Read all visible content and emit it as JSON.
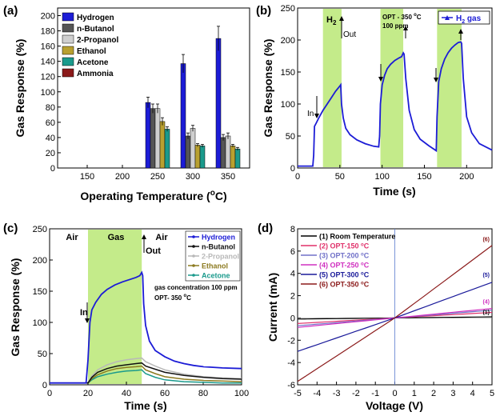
{
  "chart_data": [
    {
      "panel": "(a)",
      "type": "bar",
      "xlabel": "Operating Temperature (",
      "xlabel_sup": "o",
      "xlabel_end": "C)",
      "ylabel": "Gas Response (%)",
      "categories": [
        "150",
        "200",
        "250",
        "300",
        "350"
      ],
      "ylim": [
        0,
        210
      ],
      "yticks": [
        0,
        20,
        40,
        60,
        80,
        100,
        120,
        140,
        160,
        180,
        200
      ],
      "series": [
        {
          "name": "Hydrogen",
          "color": "#1c1cd6",
          "values": [
            0,
            0,
            86,
            137,
            170
          ],
          "errors": [
            0,
            0,
            7,
            12,
            16
          ]
        },
        {
          "name": "n-Butanol",
          "color": "#555555",
          "values": [
            0,
            0,
            78,
            42,
            40
          ],
          "errors": [
            0,
            0,
            6,
            4,
            4
          ]
        },
        {
          "name": "2-Propanol",
          "color": "#cfcfcf",
          "values": [
            0,
            0,
            78,
            52,
            42
          ],
          "errors": [
            0,
            0,
            6,
            4,
            4
          ]
        },
        {
          "name": "Ethanol",
          "color": "#b8a030",
          "values": [
            0,
            0,
            61,
            30,
            29
          ],
          "errors": [
            0,
            0,
            5,
            2,
            2
          ]
        },
        {
          "name": "Acetone",
          "color": "#1a9a8c",
          "values": [
            0,
            0,
            51,
            29,
            25
          ],
          "errors": [
            0,
            0,
            3,
            2,
            2
          ]
        },
        {
          "name": "Ammonia",
          "color": "#8b1a1a",
          "values": [
            0,
            0,
            0,
            0,
            0
          ],
          "errors": [
            0,
            0,
            0,
            0,
            0
          ]
        }
      ]
    },
    {
      "panel": "(b)",
      "type": "line",
      "xlabel": "Time (s)",
      "ylabel": "Gas Response (%)",
      "xlim": [
        0,
        230
      ],
      "ylim": [
        0,
        250
      ],
      "xticks": [
        0,
        50,
        100,
        150,
        200
      ],
      "yticks": [
        0,
        50,
        100,
        150,
        200,
        250
      ],
      "shaded": [
        [
          30,
          52
        ],
        [
          98,
          125
        ],
        [
          165,
          194
        ]
      ],
      "series": [
        {
          "name": "H2 gas",
          "color": "#1c1cd6",
          "x": [
            0,
            18,
            19,
            20,
            22,
            25,
            30,
            35,
            40,
            45,
            50,
            51,
            52,
            54,
            57,
            62,
            70,
            80,
            90,
            96,
            97,
            98,
            100,
            103,
            106,
            110,
            115,
            120,
            123,
            125,
            126,
            128,
            132,
            138,
            145,
            155,
            164,
            165,
            167,
            170,
            174,
            178,
            182,
            186,
            190,
            193,
            194,
            196,
            200,
            206,
            215,
            230
          ],
          "y": [
            3,
            3,
            20,
            65,
            70,
            78,
            90,
            100,
            110,
            120,
            128,
            130,
            100,
            78,
            62,
            52,
            44,
            38,
            34,
            33,
            50,
            100,
            130,
            145,
            155,
            162,
            168,
            172,
            174,
            180,
            178,
            140,
            90,
            60,
            45,
            35,
            27,
            80,
            135,
            155,
            170,
            180,
            187,
            192,
            196,
            197,
            195,
            140,
            80,
            55,
            38,
            28
          ]
        }
      ],
      "annotations": [
        "In",
        "Out",
        "OPT - 350 ",
        "100 ppm"
      ],
      "annotation_h2": "H",
      "annotation_h2_sub": "2",
      "annotation_opt_sup": "o",
      "annotation_opt_end": "C"
    },
    {
      "panel": "(c)",
      "type": "line",
      "xlabel": "Time (s)",
      "ylabel": "Gas Response (%)",
      "xlim": [
        0,
        100
      ],
      "ylim": [
        0,
        250
      ],
      "xticks": [
        0,
        20,
        40,
        60,
        80,
        100
      ],
      "yticks": [
        0,
        50,
        100,
        150,
        200,
        250
      ],
      "shaded": [
        [
          20,
          48
        ]
      ],
      "region_labels": [
        "Air",
        "Gas",
        "Air"
      ],
      "annotations": [
        "In",
        "Out",
        "gas concentration 100 ppm",
        "OPT- 350 "
      ],
      "annotation_sup": "o",
      "annotation_end": "C",
      "series": [
        {
          "name": "Hydrogen",
          "color": "#1c1cd6",
          "x": [
            0,
            19,
            20,
            21,
            22,
            24,
            27,
            30,
            34,
            38,
            42,
            45,
            47,
            48,
            48.5,
            49,
            50,
            52,
            55,
            60,
            65,
            70,
            75,
            80,
            90,
            100
          ],
          "y": [
            3,
            3,
            40,
            100,
            120,
            132,
            145,
            153,
            160,
            165,
            169,
            172,
            175,
            180,
            175,
            130,
            95,
            70,
            55,
            45,
            38,
            34,
            31,
            29,
            27,
            26
          ]
        },
        {
          "name": "n-Butanol",
          "color": "#111111",
          "x": [
            0,
            20,
            22,
            25,
            30,
            35,
            40,
            45,
            48,
            50,
            55,
            60,
            70,
            80,
            90,
            100
          ],
          "y": [
            3,
            3,
            12,
            20,
            26,
            30,
            32,
            34,
            35,
            30,
            25,
            20,
            15,
            12,
            10,
            9
          ]
        },
        {
          "name": "2-Propanol",
          "color": "#b8b8b8",
          "x": [
            0,
            20,
            22,
            25,
            30,
            35,
            40,
            45,
            48,
            50,
            55,
            60,
            70,
            80,
            90,
            100
          ],
          "y": [
            3,
            3,
            14,
            24,
            32,
            37,
            40,
            42,
            43,
            37,
            30,
            24,
            17,
            13,
            11,
            10
          ]
        },
        {
          "name": "Ethanol",
          "color": "#8c7a20",
          "x": [
            0,
            20,
            22,
            25,
            30,
            35,
            40,
            45,
            48,
            50,
            55,
            60,
            70,
            80,
            90,
            100
          ],
          "y": [
            3,
            3,
            10,
            16,
            22,
            26,
            28,
            29,
            30,
            24,
            18,
            13,
            9,
            7,
            6,
            5
          ]
        },
        {
          "name": "Acetone",
          "color": "#1a9a8c",
          "x": [
            0,
            20,
            22,
            25,
            30,
            35,
            40,
            45,
            48,
            50,
            55,
            60,
            70,
            80,
            90,
            100
          ],
          "y": [
            3,
            3,
            8,
            13,
            17,
            20,
            22,
            23,
            24,
            18,
            12,
            8,
            5,
            4,
            3,
            3
          ]
        }
      ]
    },
    {
      "panel": "(d)",
      "type": "line",
      "xlabel": "Voltage (V)",
      "ylabel": "Current (mA)",
      "xlim": [
        -5,
        5
      ],
      "ylim": [
        -6,
        8
      ],
      "xticks": [
        -5,
        -4,
        -3,
        -2,
        -1,
        0,
        1,
        2,
        3,
        4,
        5
      ],
      "yticks": [
        -6,
        -4,
        -2,
        0,
        2,
        4,
        6,
        8
      ],
      "legend_unit_sup": "o",
      "legend_unit_end": "C",
      "series": [
        {
          "name": "(1) Room Temperature",
          "color": "#000000",
          "slope": 0.02
        },
        {
          "name": "(2) OPT-150 ",
          "color": "#e0306a",
          "slope": 0.1
        },
        {
          "name": "(3) OPT-200 ",
          "color": "#7070c8",
          "slope": 0.14
        },
        {
          "name": "(4) OPT-250 ",
          "color": "#d030c0",
          "slope": 0.17
        },
        {
          "name": "(5) OPT-300 ",
          "color": "#1a1a9a",
          "slope_pos": 0.64,
          "slope_neg": 0.6
        },
        {
          "name": "(6) OPT-350 ",
          "color": "#8b1a1a",
          "slope_pos": 1.3,
          "slope_neg": 1.14
        }
      ],
      "curve_labels": [
        "(6)",
        "(5)",
        "(4)",
        "(1)"
      ]
    }
  ]
}
